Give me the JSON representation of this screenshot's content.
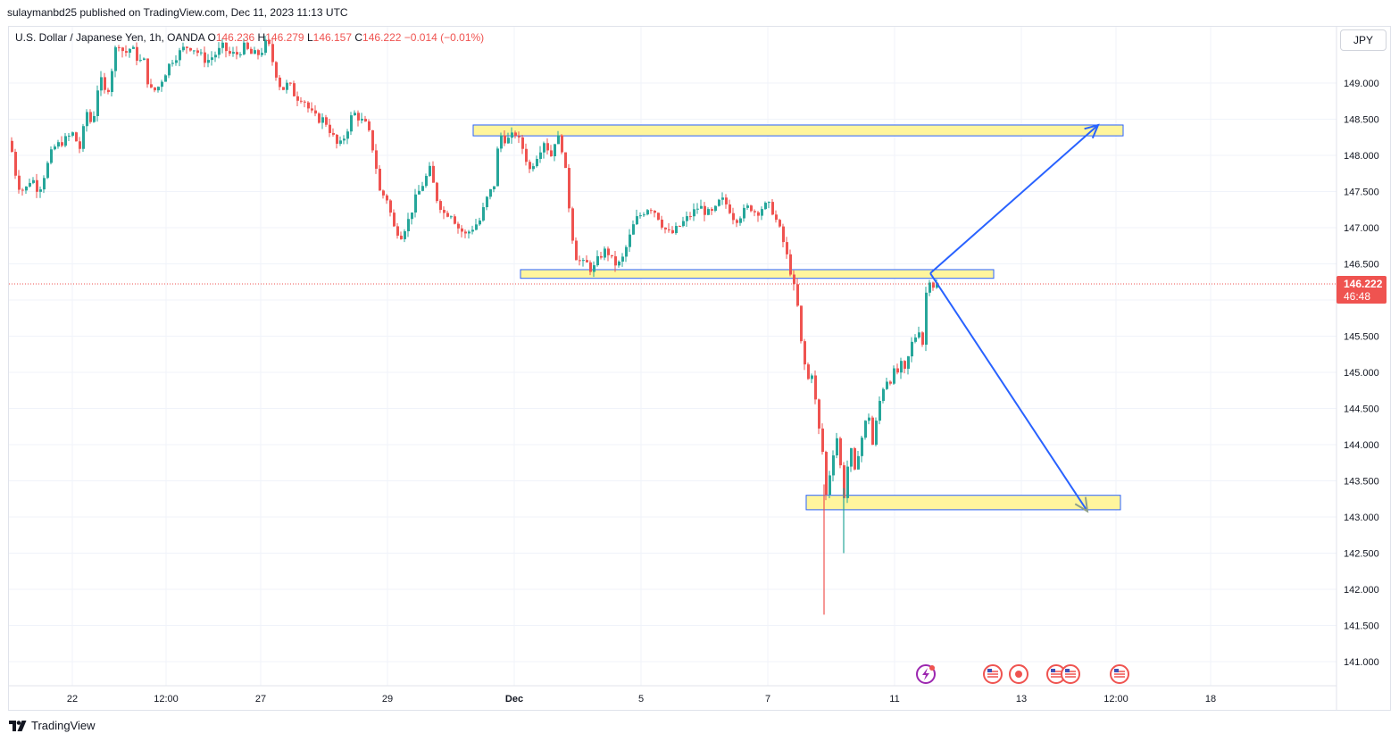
{
  "header": {
    "published_by": "sulaymanbd25 published on TradingView.com, Dec 11, 2023 11:13 UTC"
  },
  "legend": {
    "symbol": "U.S. Dollar / Japanese Yen, 1h, OANDA",
    "o_label": "O",
    "o_value": "146.236",
    "h_label": "H",
    "h_value": "146.279",
    "l_label": "L",
    "l_value": "146.157",
    "c_label": "C",
    "c_value": "146.222",
    "change": "−0.014 (−0.01%)"
  },
  "currency_button": "JPY",
  "branding": "TradingView",
  "colors": {
    "up": "#26a69a",
    "down": "#ef5350",
    "zone_fill": "#fff59d",
    "zone_border": "#2962ff",
    "arrow": "#2962ff",
    "price_badge": "#ef5350"
  },
  "chart_data": {
    "type": "candlestick",
    "symbol": "USDJPY",
    "interval": "1h",
    "ylim": [
      140.6,
      149.6
    ],
    "y_ticks": [
      "149.000",
      "148.500",
      "148.000",
      "147.500",
      "147.000",
      "146.500",
      "146.000",
      "145.500",
      "145.000",
      "144.500",
      "144.000",
      "143.500",
      "143.000",
      "142.500",
      "142.000",
      "141.500",
      "141.000"
    ],
    "x_ticks": [
      "22",
      "12:00",
      "27",
      "29",
      "Dec",
      "5",
      "7",
      "11",
      "13",
      "12:00",
      "18"
    ],
    "last_price": "146.222",
    "countdown": "46:48",
    "close_path": [
      [
        0,
        148.2
      ],
      [
        8,
        147.6
      ],
      [
        16,
        147.5
      ],
      [
        24,
        147.7
      ],
      [
        32,
        147.5
      ],
      [
        40,
        147.8
      ],
      [
        48,
        148.1
      ],
      [
        60,
        148.2
      ],
      [
        70,
        148.3
      ],
      [
        78,
        148.1
      ],
      [
        86,
        148.6
      ],
      [
        92,
        148.4
      ],
      [
        100,
        149.1
      ],
      [
        108,
        148.8
      ],
      [
        114,
        149.2
      ],
      [
        120,
        149.6
      ],
      [
        128,
        149.4
      ],
      [
        136,
        149.5
      ],
      [
        144,
        149.3
      ],
      [
        150,
        149.3
      ],
      [
        156,
        148.9
      ],
      [
        164,
        148.9
      ],
      [
        172,
        149.1
      ],
      [
        180,
        149.3
      ],
      [
        188,
        149.4
      ],
      [
        196,
        149.5
      ],
      [
        204,
        149.5
      ],
      [
        212,
        149.4
      ],
      [
        220,
        149.3
      ],
      [
        230,
        149.4
      ],
      [
        238,
        149.5
      ],
      [
        246,
        149.4
      ],
      [
        254,
        149.4
      ],
      [
        262,
        149.5
      ],
      [
        270,
        149.4
      ],
      [
        280,
        149.4
      ],
      [
        288,
        149.6
      ],
      [
        296,
        149.2
      ],
      [
        304,
        148.9
      ],
      [
        312,
        149.0
      ],
      [
        320,
        148.8
      ],
      [
        328,
        148.8
      ],
      [
        336,
        148.6
      ],
      [
        344,
        148.5
      ],
      [
        352,
        148.5
      ],
      [
        360,
        148.3
      ],
      [
        368,
        148.1
      ],
      [
        376,
        148.3
      ],
      [
        384,
        148.6
      ],
      [
        392,
        148.5
      ],
      [
        400,
        148.4
      ],
      [
        408,
        148.0
      ],
      [
        414,
        147.5
      ],
      [
        422,
        147.4
      ],
      [
        430,
        147.0
      ],
      [
        438,
        146.9
      ],
      [
        446,
        147.1
      ],
      [
        454,
        147.4
      ],
      [
        462,
        147.6
      ],
      [
        470,
        147.8
      ],
      [
        478,
        147.4
      ],
      [
        486,
        147.2
      ],
      [
        494,
        147.2
      ],
      [
        502,
        147.0
      ],
      [
        510,
        146.9
      ],
      [
        518,
        147.0
      ],
      [
        526,
        147.1
      ],
      [
        534,
        147.4
      ],
      [
        542,
        147.6
      ],
      [
        548,
        148.3
      ],
      [
        556,
        148.2
      ],
      [
        566,
        148.3
      ],
      [
        574,
        148.1
      ],
      [
        582,
        147.8
      ],
      [
        590,
        148.0
      ],
      [
        598,
        148.2
      ],
      [
        606,
        148.0
      ],
      [
        612,
        148.3
      ],
      [
        618,
        148.1
      ],
      [
        624,
        147.6
      ],
      [
        628,
        147.0
      ],
      [
        634,
        146.6
      ],
      [
        640,
        146.5
      ],
      [
        646,
        146.5
      ],
      [
        652,
        146.4
      ],
      [
        660,
        146.6
      ],
      [
        668,
        146.7
      ],
      [
        676,
        146.5
      ],
      [
        684,
        146.5
      ],
      [
        692,
        146.8
      ],
      [
        700,
        147.1
      ],
      [
        708,
        147.2
      ],
      [
        716,
        147.3
      ],
      [
        724,
        147.2
      ],
      [
        732,
        147.0
      ],
      [
        740,
        146.9
      ],
      [
        748,
        147.0
      ],
      [
        756,
        147.1
      ],
      [
        764,
        147.2
      ],
      [
        772,
        147.3
      ],
      [
        780,
        147.2
      ],
      [
        788,
        147.2
      ],
      [
        796,
        147.4
      ],
      [
        804,
        147.3
      ],
      [
        812,
        147.1
      ],
      [
        820,
        147.2
      ],
      [
        828,
        147.3
      ],
      [
        836,
        147.2
      ],
      [
        844,
        147.3
      ],
      [
        852,
        147.3
      ],
      [
        858,
        147.1
      ],
      [
        864,
        146.9
      ],
      [
        870,
        146.6
      ],
      [
        876,
        146.3
      ],
      [
        882,
        145.9
      ],
      [
        886,
        145.4
      ],
      [
        890,
        145.1
      ],
      [
        894,
        144.9
      ],
      [
        898,
        145.0
      ],
      [
        902,
        144.6
      ],
      [
        906,
        144.2
      ],
      [
        910,
        143.9
      ],
      [
        914,
        143.3
      ],
      [
        918,
        143.6
      ],
      [
        922,
        143.9
      ],
      [
        926,
        144.1
      ],
      [
        930,
        143.7
      ],
      [
        934,
        143.3
      ],
      [
        938,
        143.7
      ],
      [
        942,
        143.9
      ],
      [
        946,
        143.6
      ],
      [
        950,
        143.9
      ],
      [
        954,
        144.1
      ],
      [
        958,
        144.3
      ],
      [
        962,
        144.4
      ],
      [
        966,
        144.0
      ],
      [
        970,
        144.3
      ],
      [
        974,
        144.6
      ],
      [
        978,
        144.8
      ],
      [
        982,
        144.9
      ],
      [
        986,
        144.9
      ],
      [
        990,
        145.0
      ],
      [
        994,
        145.0
      ],
      [
        998,
        145.1
      ],
      [
        1002,
        145.0
      ],
      [
        1006,
        145.2
      ],
      [
        1010,
        145.4
      ],
      [
        1014,
        145.5
      ],
      [
        1018,
        145.6
      ],
      [
        1022,
        145.4
      ],
      [
        1026,
        146.1
      ],
      [
        1030,
        146.3
      ],
      [
        1034,
        146.2
      ],
      [
        1038,
        146.222
      ]
    ],
    "zones": [
      {
        "from_x": 530,
        "to_x": 1258,
        "top": 148.42,
        "bottom": 148.27
      },
      {
        "from_x": 583,
        "to_x": 1113,
        "top": 146.42,
        "bottom": 146.3
      },
      {
        "from_x": 903,
        "to_x": 1255,
        "top": 143.3,
        "bottom": 143.1
      }
    ],
    "projections": [
      {
        "points": [
          [
            1042,
            146.37
          ],
          [
            1230,
            148.42
          ]
        ]
      },
      {
        "points": [
          [
            1042,
            146.37
          ],
          [
            1218,
            143.08
          ]
        ]
      }
    ],
    "special_wicks": [
      {
        "x": 913,
        "low": 141.65
      },
      {
        "x": 935,
        "low": 142.5
      }
    ],
    "events": [
      {
        "x": 1037,
        "kind": "bolt"
      },
      {
        "x": 1112,
        "kind": "flag"
      },
      {
        "x": 1141,
        "kind": "dot"
      },
      {
        "x": 1183,
        "kind": "flag"
      },
      {
        "x": 1199,
        "kind": "flag"
      },
      {
        "x": 1254,
        "kind": "flag"
      }
    ],
    "grid": true
  }
}
